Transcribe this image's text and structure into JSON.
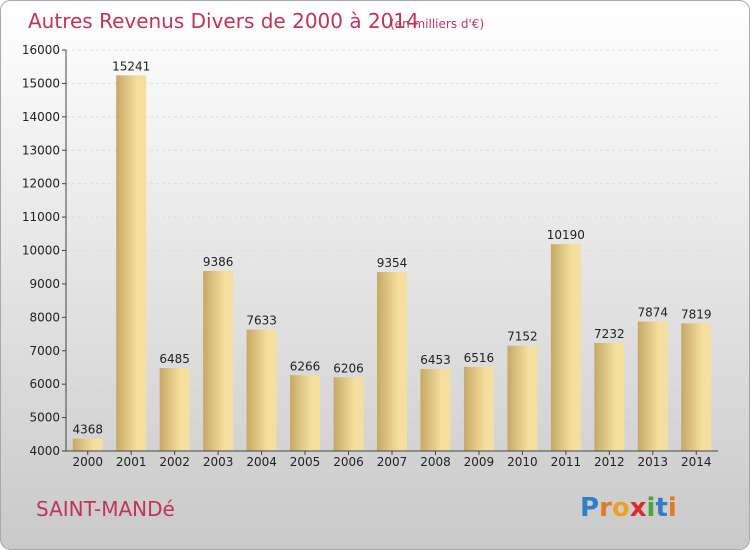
{
  "title": {
    "main": "Autres Revenus Divers de 2000 à 2014",
    "sub": "(en milliers d'€)"
  },
  "footer": {
    "city": "SAINT-MANDé",
    "logo": {
      "letters": [
        "P",
        "r",
        "o",
        "x",
        "i",
        "t",
        "i"
      ],
      "colors": [
        "#2f7fc8",
        "#e07b1f",
        "#f0a020",
        "#d92b2b",
        "#4aa63a",
        "#2f7fc8",
        "#e07b1f"
      ]
    }
  },
  "colors": {
    "title": "#c0335a",
    "bar_light": "#f5df9e",
    "bar_dark": "#c6a865",
    "background_top": "#ffffff",
    "background_bottom": "#c9c9c9"
  },
  "chart_data": {
    "type": "bar",
    "categories": [
      "2000",
      "2001",
      "2002",
      "2003",
      "2004",
      "2005",
      "2006",
      "2007",
      "2008",
      "2009",
      "2010",
      "2011",
      "2012",
      "2013",
      "2014"
    ],
    "values": [
      4368,
      15241,
      6485,
      9386,
      7633,
      6266,
      6206,
      9354,
      6453,
      6516,
      7152,
      10190,
      7232,
      7874,
      7819
    ],
    "ylim": [
      4000,
      16000
    ],
    "yticks": [
      4000,
      5000,
      6000,
      7000,
      8000,
      9000,
      10000,
      11000,
      12000,
      13000,
      14000,
      15000,
      16000
    ],
    "grid": true,
    "legend": "none"
  }
}
